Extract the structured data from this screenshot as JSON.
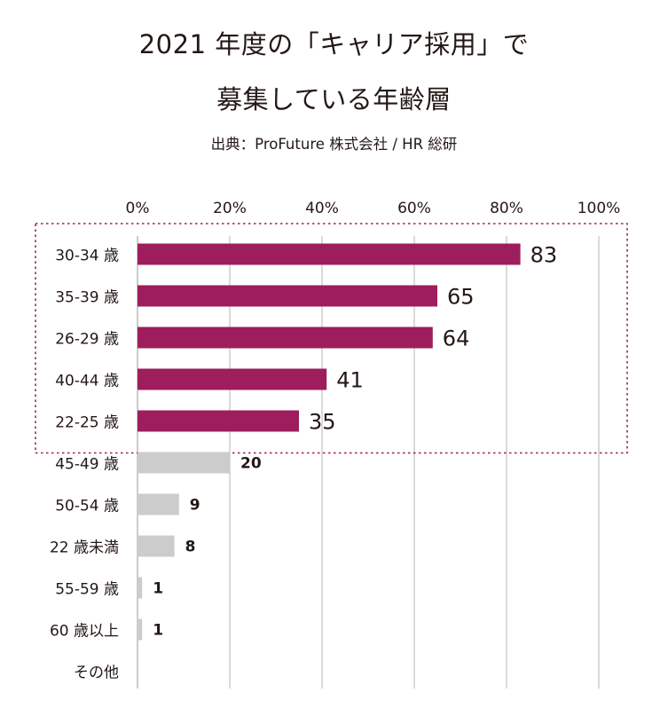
{
  "header": {
    "title_line1": "2021 年度の「キャリア採用」で",
    "title_line2": "募集している年齢層",
    "source": "出典：ProFuture 株式会社 / HR 総研"
  },
  "chart_data": {
    "type": "bar",
    "orientation": "horizontal",
    "categories": [
      "30-34 歳",
      "35-39 歳",
      "26-29 歳",
      "40-44 歳",
      "22-25 歳",
      "45-49 歳",
      "50-54 歳",
      "22 歳未満",
      "55-59 歳",
      "60 歳以上",
      "その他"
    ],
    "values": [
      83,
      65,
      64,
      41,
      35,
      20,
      9,
      8,
      1,
      1,
      null
    ],
    "value_labels": [
      "83",
      "65",
      "64",
      "41",
      "35",
      "20",
      "9",
      "8",
      "1",
      "1",
      ""
    ],
    "x_ticks": [
      "0%",
      "20%",
      "40%",
      "60%",
      "80%",
      "100%"
    ],
    "xlim": [
      0,
      100
    ],
    "highlight_count": 5,
    "grid": true,
    "colors": {
      "highlight": "#9e1d5c",
      "normal": "#cccccc",
      "grid": "#b5b5b5",
      "box": "#9e1d5c",
      "text": "#231815"
    }
  }
}
